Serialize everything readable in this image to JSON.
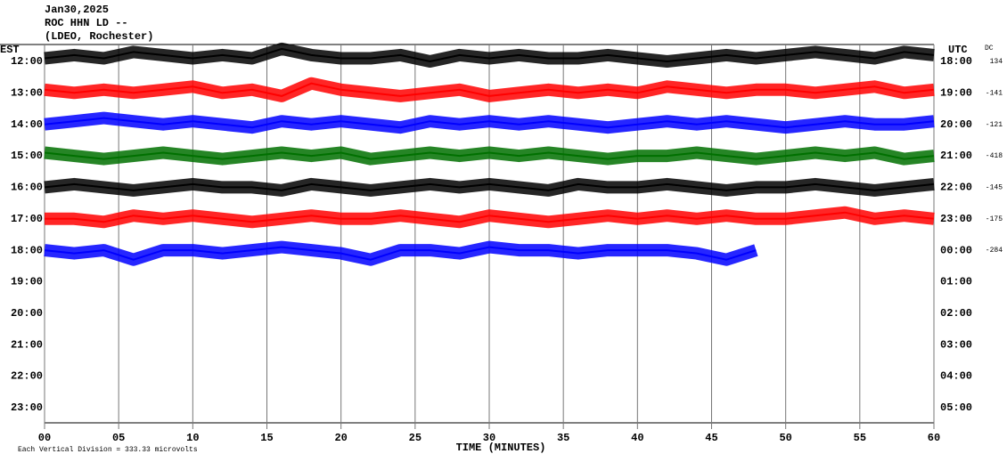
{
  "header": {
    "date": "Jan30,2025",
    "station": "ROC HHN LD --",
    "network": "(LDEO, Rochester)"
  },
  "chart_data": {
    "type": "helicorder",
    "left_label": "EST",
    "right_label": "UTC",
    "dc_label": "DC",
    "x_label": "TIME (MINUTES)",
    "footnote": "Each Vertical Division =  333.33 microvolts",
    "xlim": [
      0,
      60
    ],
    "xticks": [
      {
        "value": 0,
        "label": "00"
      },
      {
        "value": 5,
        "label": "05"
      },
      10,
      15,
      20,
      25,
      30,
      35,
      40,
      45,
      50,
      55,
      60
    ],
    "categories": [
      "12:00",
      "13:00",
      "14:00",
      "15:00",
      "16:00",
      "17:00",
      "18:00",
      "19:00",
      "20:00",
      "21:00",
      "22:00",
      "23:00"
    ],
    "utc_categories": [
      "18:00",
      "19:00",
      "20:00",
      "21:00",
      "22:00",
      "23:00",
      "00:00",
      "01:00",
      "02:00",
      "03:00",
      "04:00",
      "05:00"
    ],
    "x": [
      0,
      2,
      4,
      6,
      8,
      10,
      12,
      14,
      16,
      18,
      20,
      22,
      24,
      26,
      28,
      30,
      32,
      34,
      36,
      38,
      40,
      42,
      44,
      46,
      48,
      50,
      52,
      54,
      56,
      58,
      60
    ],
    "series": [
      {
        "color": "#000000",
        "dc": 134,
        "values": [
          0.1,
          0.2,
          0.1,
          0.3,
          0.2,
          0.1,
          0.2,
          0.1,
          0.4,
          0.2,
          0.1,
          0.1,
          0.2,
          0.0,
          0.2,
          0.1,
          0.2,
          0.1,
          0.1,
          0.2,
          0.1,
          0.0,
          0.1,
          0.2,
          0.1,
          0.2,
          0.3,
          0.2,
          0.1,
          0.3,
          0.2
        ]
      },
      {
        "color": "#ff0000",
        "dc": -141,
        "values": [
          0.1,
          0.0,
          0.1,
          0.0,
          0.1,
          0.2,
          0.0,
          0.1,
          -0.1,
          0.3,
          0.1,
          0.0,
          -0.1,
          0.0,
          0.1,
          -0.1,
          0.0,
          0.1,
          0.0,
          0.1,
          0.0,
          0.2,
          0.1,
          0.0,
          0.1,
          0.1,
          0.0,
          0.1,
          0.2,
          0.0,
          0.1
        ]
      },
      {
        "color": "#0000ff",
        "dc": -121,
        "values": [
          0.0,
          0.1,
          0.2,
          0.1,
          0.0,
          0.1,
          0.0,
          -0.1,
          0.1,
          0.0,
          0.1,
          0.0,
          -0.1,
          0.1,
          0.0,
          0.1,
          0.0,
          0.1,
          0.0,
          -0.1,
          0.0,
          0.1,
          0.0,
          0.1,
          0.0,
          -0.1,
          0.0,
          0.1,
          0.0,
          0.0,
          0.1
        ]
      },
      {
        "color": "#007000",
        "dc": -418,
        "values": [
          0.1,
          0.0,
          -0.1,
          0.0,
          0.1,
          0.0,
          -0.1,
          0.0,
          0.1,
          0.0,
          0.1,
          -0.1,
          0.0,
          0.1,
          0.0,
          0.1,
          0.0,
          0.1,
          0.0,
          -0.1,
          0.0,
          0.0,
          0.1,
          0.0,
          -0.1,
          0.0,
          0.1,
          0.0,
          0.1,
          -0.1,
          0.0
        ]
      },
      {
        "color": "#000000",
        "dc": -145,
        "values": [
          0.0,
          0.1,
          0.0,
          -0.1,
          0.0,
          0.1,
          0.0,
          0.0,
          -0.1,
          0.1,
          0.0,
          -0.1,
          0.0,
          0.1,
          0.0,
          0.1,
          0.0,
          -0.1,
          0.1,
          0.0,
          0.0,
          0.1,
          0.0,
          -0.1,
          0.0,
          0.0,
          0.1,
          0.0,
          -0.1,
          0.0,
          0.1
        ]
      },
      {
        "color": "#ff0000",
        "dc": -175,
        "values": [
          0.0,
          0.0,
          -0.1,
          0.1,
          0.0,
          0.1,
          0.0,
          -0.1,
          0.0,
          0.1,
          0.0,
          0.0,
          0.1,
          0.0,
          -0.1,
          0.1,
          0.0,
          -0.1,
          0.0,
          0.1,
          0.0,
          0.1,
          0.0,
          0.1,
          0.0,
          0.0,
          0.1,
          0.2,
          0.0,
          0.1,
          0.0
        ]
      },
      {
        "color": "#0000ff",
        "dc": -284,
        "values": [
          0.0,
          -0.1,
          0.0,
          -0.3,
          0.0,
          0.0,
          -0.1,
          0.0,
          0.1,
          0.0,
          -0.1,
          -0.3,
          0.0,
          0.0,
          -0.1,
          0.1,
          0.0,
          0.0,
          -0.1,
          0.0,
          0.0,
          0.0,
          -0.1,
          -0.3,
          0.0,
          null,
          null,
          null,
          null,
          null,
          null
        ]
      }
    ]
  }
}
